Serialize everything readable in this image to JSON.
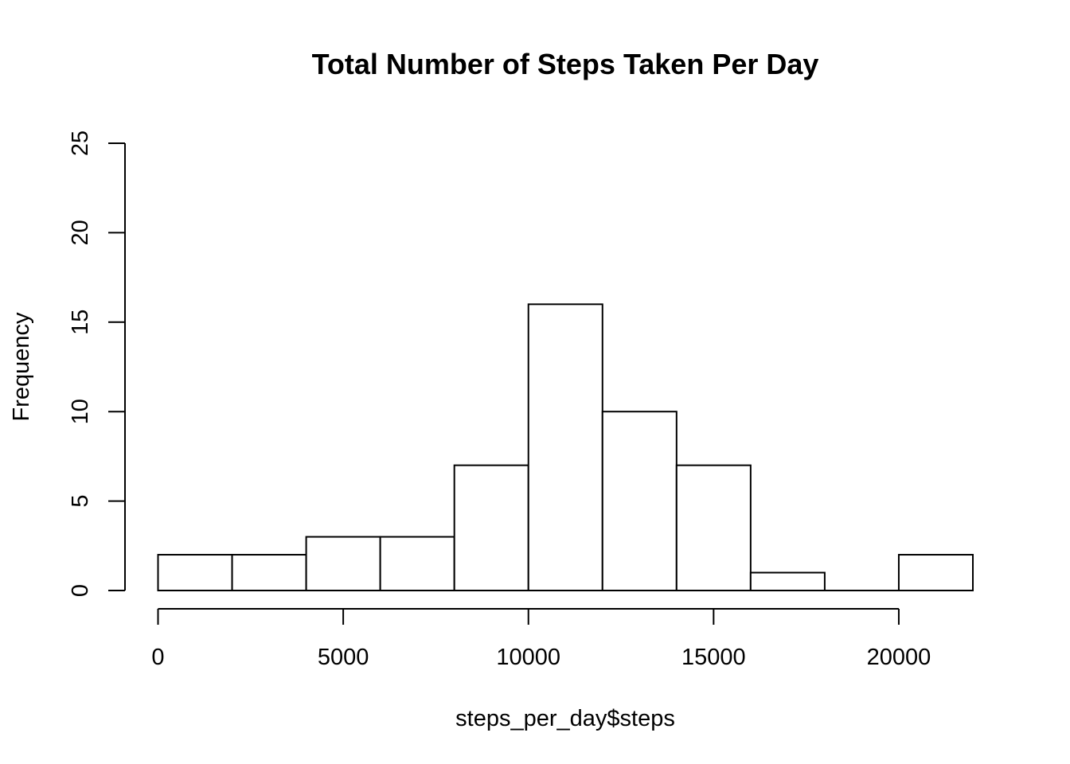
{
  "chart_data": {
    "type": "bar",
    "title": "Total Number of Steps Taken Per Day",
    "xlabel": "steps_per_day$steps",
    "ylabel": "Frequency",
    "bins": [
      {
        "start": 0,
        "end": 2000,
        "count": 2
      },
      {
        "start": 2000,
        "end": 4000,
        "count": 2
      },
      {
        "start": 4000,
        "end": 6000,
        "count": 3
      },
      {
        "start": 6000,
        "end": 8000,
        "count": 3
      },
      {
        "start": 8000,
        "end": 10000,
        "count": 7
      },
      {
        "start": 10000,
        "end": 12000,
        "count": 16
      },
      {
        "start": 12000,
        "end": 14000,
        "count": 10
      },
      {
        "start": 14000,
        "end": 16000,
        "count": 7
      },
      {
        "start": 16000,
        "end": 18000,
        "count": 1
      },
      {
        "start": 18000,
        "end": 20000,
        "count": 0
      },
      {
        "start": 20000,
        "end": 22000,
        "count": 2
      }
    ],
    "xticks": [
      0,
      5000,
      10000,
      15000,
      20000
    ],
    "yticks": [
      0,
      5,
      10,
      15,
      20,
      25
    ],
    "xlim": [
      0,
      22000
    ],
    "ylim": [
      0,
      25
    ],
    "grid": false,
    "legend": "none"
  }
}
